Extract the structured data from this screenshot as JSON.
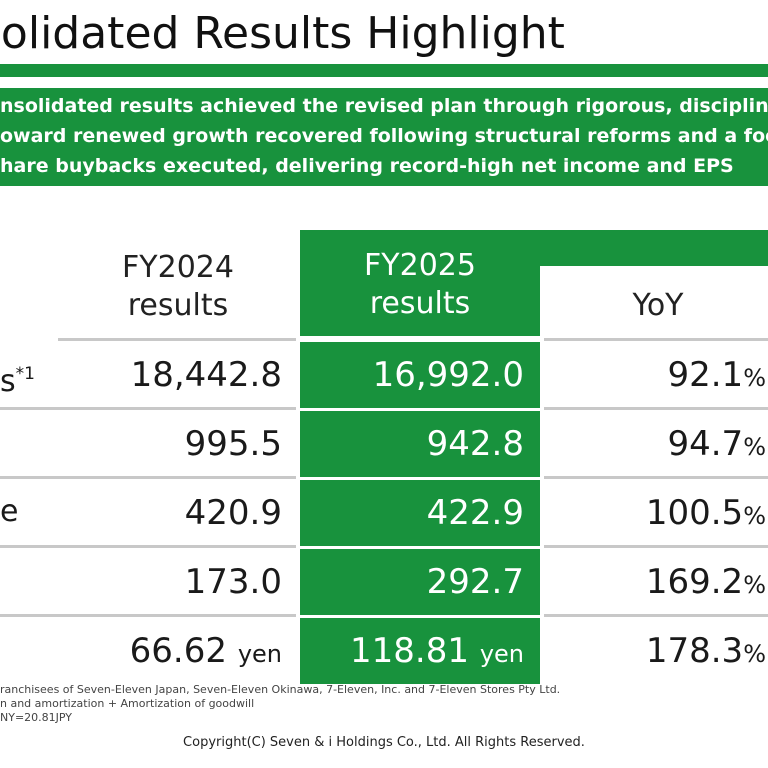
{
  "title": "solidated Results Highlight",
  "summary_lines": [
    "nsolidated results achieved the revised plan through rigorous, disciplined ex",
    "oward renewed growth recovered following structural reforms and a focus",
    "hare buybacks executed, delivering record-high net income and EPS"
  ],
  "table": {
    "headers": {
      "fy2024": [
        "FY2024",
        "results"
      ],
      "fy2025": [
        "FY2025",
        "results"
      ],
      "yoy": "YoY"
    },
    "rows": [
      {
        "label": "s",
        "label_sup": "*1",
        "fy2024": "18,442.8",
        "fy2025": "16,992.0",
        "yoy": "92.1",
        "yoy_unit": "%",
        "unit": ""
      },
      {
        "label": "",
        "label_sup": "",
        "fy2024": "995.5",
        "fy2025": "942.8",
        "yoy": "94.7",
        "yoy_unit": "%",
        "unit": ""
      },
      {
        "label": "e",
        "label_sup": "",
        "fy2024": "420.9",
        "fy2025": "422.9",
        "yoy": "100.5",
        "yoy_unit": "%",
        "unit": ""
      },
      {
        "label": "",
        "label_sup": "",
        "fy2024": "173.0",
        "fy2025": "292.7",
        "yoy": "169.2",
        "yoy_unit": "%",
        "unit": ""
      },
      {
        "label": "",
        "label_sup": "",
        "fy2024": "66.62",
        "fy2025": "118.81",
        "yoy": "178.3",
        "yoy_unit": "%",
        "unit": "yen"
      }
    ]
  },
  "notes": [
    "ranchisees of Seven-Eleven Japan, Seven-Eleven Okinawa, 7-Eleven, Inc. and 7-Eleven Stores Pty Ltd.",
    "n and amortization + Amortization of goodwill",
    "NY=20.81JPY"
  ],
  "copyright": "Copyright(C) Seven & i Holdings Co., Ltd. All Rights Reserved.",
  "colors": {
    "brand_green": "#18923d",
    "rule_gray": "#c8c8c8"
  }
}
